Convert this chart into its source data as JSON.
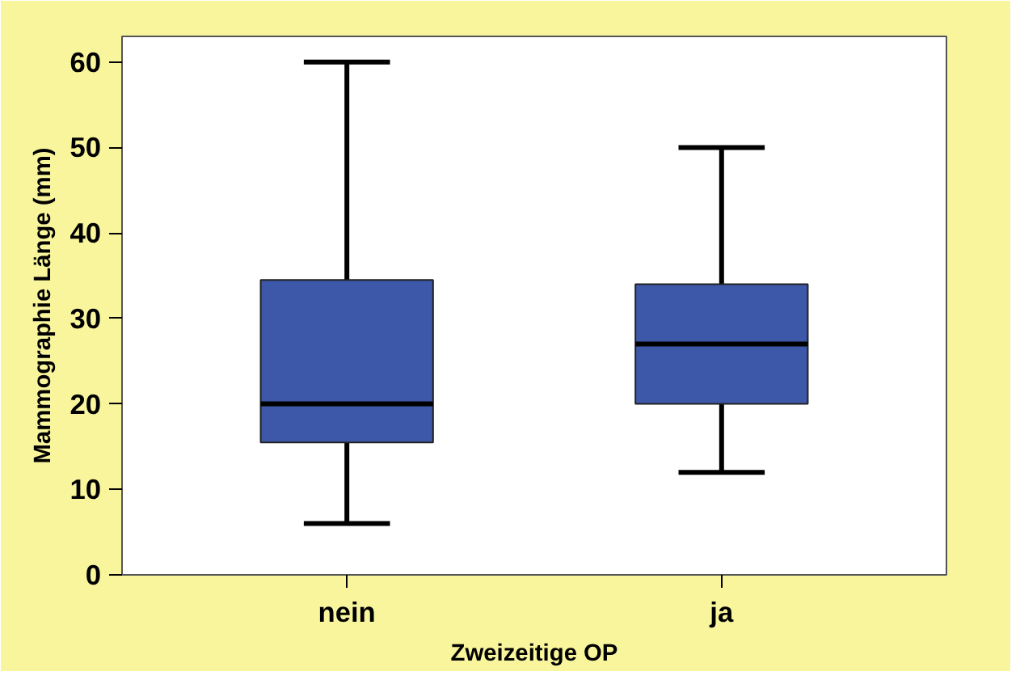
{
  "chart_data": {
    "type": "box",
    "categories": [
      "nein",
      "ja"
    ],
    "xlabel": "Zweizeitige OP",
    "ylabel": "Mammographie Länge (mm)",
    "color": "#3d58a8",
    "boxes": [
      {
        "low": 6,
        "q1": 15.5,
        "median": 20,
        "q3": 34.5,
        "high": 60
      },
      {
        "low": 12,
        "q1": 20,
        "median": 27,
        "q3": 34,
        "high": 50
      }
    ],
    "ylim": [
      0,
      63
    ],
    "yticks": [
      0,
      10,
      20,
      30,
      40,
      50,
      60
    ],
    "grid": false
  }
}
